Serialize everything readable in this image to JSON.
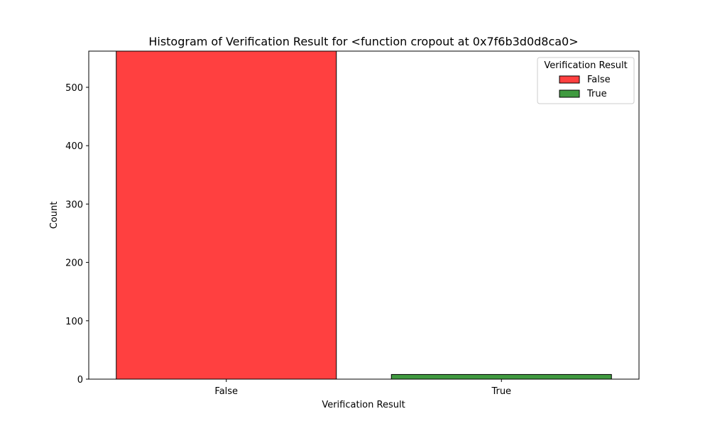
{
  "chart_data": {
    "type": "bar",
    "title": "Histogram of Verification Result for <function cropout at 0x7f6b3d0d8ca0>",
    "xlabel": "Verification Result",
    "ylabel": "Count",
    "categories": [
      "False",
      "True"
    ],
    "values": [
      592,
      8
    ],
    "colors": [
      "#ff4040",
      "#409a40"
    ],
    "ylim": [
      0,
      562
    ],
    "yticks": [
      0,
      100,
      200,
      300,
      400,
      500
    ],
    "grid": false,
    "legend": {
      "title": "Verification Result",
      "position": "top-right",
      "entries": [
        {
          "label": "False",
          "color": "#ff4040"
        },
        {
          "label": "True",
          "color": "#409a40"
        }
      ]
    }
  }
}
